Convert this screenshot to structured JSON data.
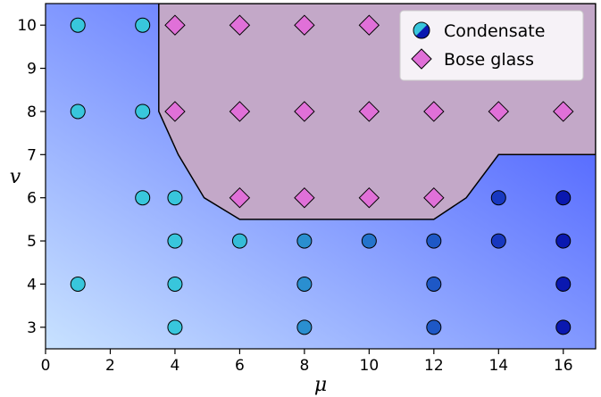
{
  "chart_data": {
    "type": "scatter",
    "xlabel": "μ",
    "ylabel": "v",
    "xlim": [
      0,
      17
    ],
    "ylim": [
      2.5,
      10.5
    ],
    "xticks": [
      0,
      2,
      4,
      6,
      8,
      10,
      12,
      14,
      16
    ],
    "yticks": [
      3,
      4,
      5,
      6,
      7,
      8,
      9,
      10
    ],
    "legend_position": "top-right",
    "background_gradient": [
      "#c8e2ff",
      "#3a4dff"
    ],
    "region": {
      "name": "Bose glass",
      "color": "#c3a8c8",
      "boundary": [
        [
          3.5,
          10.5
        ],
        [
          3.5,
          8
        ],
        [
          4.1,
          7
        ],
        [
          4.9,
          6
        ],
        [
          6,
          5.5
        ],
        [
          12,
          5.5
        ],
        [
          13,
          6
        ],
        [
          14,
          7
        ],
        [
          17,
          7
        ],
        [
          17,
          10.5
        ]
      ]
    },
    "series": [
      {
        "name": "Condensate",
        "marker": "circle",
        "points": [
          {
            "x": 1,
            "y": 10,
            "color": "#38c6dc"
          },
          {
            "x": 3,
            "y": 10,
            "color": "#38c6dc"
          },
          {
            "x": 1,
            "y": 8,
            "color": "#38c6dc"
          },
          {
            "x": 3,
            "y": 8,
            "color": "#38c6dc"
          },
          {
            "x": 3,
            "y": 6,
            "color": "#38c6dc"
          },
          {
            "x": 4,
            "y": 6,
            "color": "#38c6dc"
          },
          {
            "x": 1,
            "y": 4,
            "color": "#38c6dc"
          },
          {
            "x": 4,
            "y": 5,
            "color": "#38c6dc"
          },
          {
            "x": 4,
            "y": 4,
            "color": "#38c6dc"
          },
          {
            "x": 4,
            "y": 3,
            "color": "#38c6dc"
          },
          {
            "x": 6,
            "y": 5,
            "color": "#35bcd8"
          },
          {
            "x": 8,
            "y": 5,
            "color": "#2a8fd0"
          },
          {
            "x": 8,
            "y": 4,
            "color": "#2a8fd0"
          },
          {
            "x": 8,
            "y": 3,
            "color": "#2a8fd0"
          },
          {
            "x": 10,
            "y": 5,
            "color": "#2474cc"
          },
          {
            "x": 12,
            "y": 5,
            "color": "#1e58c6"
          },
          {
            "x": 12,
            "y": 4,
            "color": "#1e58c6"
          },
          {
            "x": 12,
            "y": 3,
            "color": "#1e58c6"
          },
          {
            "x": 14,
            "y": 6,
            "color": "#1838c0"
          },
          {
            "x": 14,
            "y": 5,
            "color": "#1838c0"
          },
          {
            "x": 16,
            "y": 6,
            "color": "#0a18b0"
          },
          {
            "x": 16,
            "y": 5,
            "color": "#0a18b0"
          },
          {
            "x": 16,
            "y": 4,
            "color": "#0a18b0"
          },
          {
            "x": 16,
            "y": 3,
            "color": "#0a18b0"
          }
        ]
      },
      {
        "name": "Bose glass",
        "marker": "diamond",
        "color": "#e070d8",
        "points": [
          {
            "x": 4,
            "y": 10
          },
          {
            "x": 6,
            "y": 10
          },
          {
            "x": 8,
            "y": 10
          },
          {
            "x": 10,
            "y": 10
          },
          {
            "x": 4,
            "y": 8
          },
          {
            "x": 6,
            "y": 8
          },
          {
            "x": 8,
            "y": 8
          },
          {
            "x": 10,
            "y": 8
          },
          {
            "x": 12,
            "y": 8
          },
          {
            "x": 14,
            "y": 8
          },
          {
            "x": 16,
            "y": 8
          },
          {
            "x": 6,
            "y": 6
          },
          {
            "x": 8,
            "y": 6
          },
          {
            "x": 10,
            "y": 6
          },
          {
            "x": 12,
            "y": 6
          }
        ]
      }
    ],
    "legend": [
      {
        "label": "Condensate",
        "marker": "circle-split",
        "colors": [
          "#38c6dc",
          "#0a18b0"
        ]
      },
      {
        "label": "Bose glass",
        "marker": "diamond",
        "color": "#e070d8"
      }
    ]
  }
}
